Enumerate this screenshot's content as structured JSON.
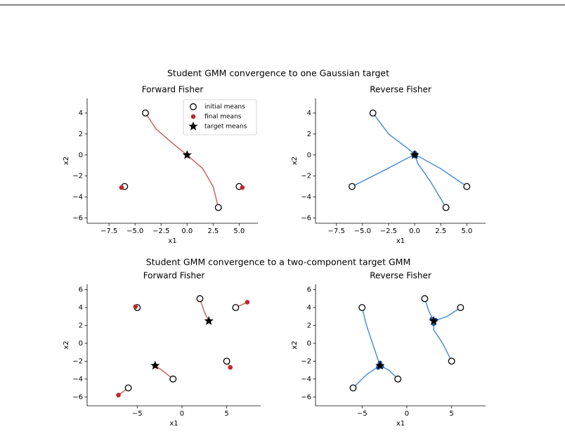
{
  "figure_titles": [
    "Student GMM convergence to one Gaussian target",
    "Student GMM convergence to a two-component target GMM"
  ],
  "chart_data": [
    {
      "type": "scatter",
      "title": "Forward Fisher",
      "xlabel": "x1",
      "ylabel": "x2",
      "xlim": [
        -9.6,
        6.8
      ],
      "ylim": [
        -6.5,
        5.4
      ],
      "xticks": [
        {
          "value": -7.5,
          "label": "−7.5"
        },
        {
          "value": -5,
          "label": "−5.0"
        },
        {
          "value": -2.5,
          "label": "−2.5"
        },
        {
          "value": 0,
          "label": "0.0"
        },
        2.5,
        {
          "value": 5,
          "label": "5.0"
        }
      ],
      "yticks": [
        {
          "value": -6,
          "label": "−6"
        },
        {
          "value": -4,
          "label": "−4"
        },
        {
          "value": -2,
          "label": "−2"
        },
        0,
        2,
        4
      ],
      "legend": "upper right",
      "path_color": "#d0605e",
      "paths": [
        {
          "x": [
            -4,
            -3,
            -1.5,
            0
          ],
          "y": [
            4,
            2.5,
            1.2,
            0
          ]
        },
        {
          "x": [
            3,
            2.5,
            1.5,
            0
          ],
          "y": [
            -5,
            -3,
            -1.3,
            0
          ]
        },
        {
          "x": [
            -6,
            -6.3
          ],
          "y": [
            -3,
            -3.1
          ]
        },
        {
          "x": [
            5,
            5.3
          ],
          "y": [
            -3,
            -3.1
          ]
        }
      ],
      "series": [
        {
          "name": "initial means",
          "marker": "open-circle",
          "color": "#000000",
          "x": [
            -4,
            3,
            -6,
            5
          ],
          "y": [
            4,
            -5,
            -3,
            -3
          ]
        },
        {
          "name": "final means",
          "marker": "dot",
          "color": "#c0282d",
          "x": [
            0,
            0,
            -6.3,
            5.3
          ],
          "y": [
            0,
            0,
            -3.1,
            -3.1
          ]
        },
        {
          "name": "target means",
          "marker": "star",
          "color": "#000000",
          "x": [
            0
          ],
          "y": [
            0
          ]
        }
      ]
    },
    {
      "type": "scatter",
      "title": "Reverse Fisher",
      "xlabel": "x1",
      "ylabel": "x2",
      "xlim": [
        -9.5,
        6.8
      ],
      "ylim": [
        -6.5,
        5.4
      ],
      "xticks": [
        {
          "value": -7.5,
          "label": "−7.5"
        },
        {
          "value": -5,
          "label": "−5.0"
        },
        {
          "value": -2.5,
          "label": "−2.5"
        },
        {
          "value": 0,
          "label": "0.0"
        },
        2.5,
        {
          "value": 5,
          "label": "5.0"
        }
      ],
      "yticks": [
        {
          "value": -6,
          "label": "−6"
        },
        {
          "value": -4,
          "label": "−4"
        },
        {
          "value": -2,
          "label": "−2"
        },
        0,
        2,
        4
      ],
      "path_color": "#4a90d9",
      "paths": [
        {
          "x": [
            -4,
            -2.5,
            -0.5,
            0
          ],
          "y": [
            4,
            2,
            0.5,
            0
          ]
        },
        {
          "x": [
            -6,
            -3,
            -0.5,
            0
          ],
          "y": [
            -3,
            -1.5,
            -0.2,
            0
          ]
        },
        {
          "x": [
            5,
            2.5,
            0.5,
            0
          ],
          "y": [
            -3,
            -1.3,
            -0.2,
            0
          ]
        },
        {
          "x": [
            3,
            1.5,
            0.3,
            0
          ],
          "y": [
            -5,
            -2.5,
            -0.8,
            0
          ]
        }
      ],
      "series": [
        {
          "marker": "open-circle",
          "color": "#000000",
          "x": [
            -4,
            -6,
            5,
            3
          ],
          "y": [
            4,
            -3,
            -3,
            -5
          ]
        },
        {
          "marker": "dot",
          "color": "#1f5fa8",
          "x": [
            0,
            -0.1,
            0.1,
            0.1
          ],
          "y": [
            0.2,
            0,
            -0.1,
            0.1
          ]
        },
        {
          "marker": "star",
          "color": "#000000",
          "x": [
            0
          ],
          "y": [
            0
          ]
        }
      ]
    },
    {
      "type": "scatter",
      "title": "Forward Fisher",
      "xlabel": "x1",
      "ylabel": "x2",
      "xlim": [
        -10.6,
        8.8
      ],
      "ylim": [
        -7,
        6.6
      ],
      "xticks": [
        {
          "value": -5,
          "label": "−5"
        },
        0,
        5
      ],
      "yticks": [
        {
          "value": -6,
          "label": "−6"
        },
        {
          "value": -4,
          "label": "−4"
        },
        {
          "value": -2,
          "label": "−2"
        },
        0,
        2,
        4,
        6
      ],
      "path_color": "#d0605e",
      "paths": [
        {
          "x": [
            2,
            2.5,
            3
          ],
          "y": [
            5,
            3.5,
            2.5
          ]
        },
        {
          "x": [
            -1,
            -2,
            -3
          ],
          "y": [
            -4,
            -3.2,
            -2.5
          ]
        },
        {
          "x": [
            6,
            7.3
          ],
          "y": [
            4,
            4.6
          ]
        },
        {
          "x": [
            5,
            5.4
          ],
          "y": [
            -2,
            -2.7
          ]
        },
        {
          "x": [
            -6,
            -7.1
          ],
          "y": [
            -5,
            -5.8
          ]
        },
        {
          "x": [
            -5,
            -5.2
          ],
          "y": [
            4,
            4.1
          ]
        }
      ],
      "series": [
        {
          "marker": "open-circle",
          "color": "#000000",
          "x": [
            -5,
            2,
            6,
            5,
            -1,
            -6
          ],
          "y": [
            4,
            5,
            4,
            -2,
            -4,
            -5
          ]
        },
        {
          "marker": "dot",
          "color": "#c0282d",
          "x": [
            -5.2,
            3,
            7.3,
            5.4,
            -3,
            -7.1
          ],
          "y": [
            4.1,
            2.5,
            4.6,
            -2.7,
            -2.5,
            -5.8
          ]
        },
        {
          "marker": "star",
          "color": "#000000",
          "x": [
            3,
            -3
          ],
          "y": [
            2.5,
            -2.5
          ]
        }
      ]
    },
    {
      "type": "scatter",
      "title": "Reverse Fisher",
      "xlabel": "x1",
      "ylabel": "x2",
      "xlim": [
        -10.2,
        8.8
      ],
      "ylim": [
        -7,
        6.6
      ],
      "xticks": [
        {
          "value": -5,
          "label": "−5"
        },
        0,
        5
      ],
      "yticks": [
        {
          "value": -6,
          "label": "−6"
        },
        {
          "value": -4,
          "label": "−4"
        },
        {
          "value": -2,
          "label": "−2"
        },
        0,
        2,
        4,
        6
      ],
      "path_color": "#4a90d9",
      "paths": [
        {
          "x": [
            -5,
            -4.5,
            -3.5,
            -3
          ],
          "y": [
            4,
            2,
            -1,
            -2.5
          ]
        },
        {
          "x": [
            -6,
            -4.5,
            -3
          ],
          "y": [
            -5,
            -3.5,
            -2.5
          ]
        },
        {
          "x": [
            -1,
            -2,
            -3
          ],
          "y": [
            -4,
            -3,
            -2.5
          ]
        },
        {
          "x": [
            2,
            2.5,
            3
          ],
          "y": [
            5,
            3.5,
            2.5
          ]
        },
        {
          "x": [
            6,
            4.5,
            3
          ],
          "y": [
            4,
            3,
            2.5
          ]
        },
        {
          "x": [
            5,
            4,
            3,
            3
          ],
          "y": [
            -2,
            0,
            1.5,
            2.5
          ]
        }
      ],
      "series": [
        {
          "marker": "open-circle",
          "color": "#000000",
          "x": [
            -5,
            2,
            6,
            5,
            -1,
            -6
          ],
          "y": [
            4,
            5,
            4,
            -2,
            -4,
            -5
          ]
        },
        {
          "marker": "dot",
          "color": "#1f5fa8",
          "x": [
            2.8,
            3.2,
            3,
            -3,
            -3.2,
            -2.8
          ],
          "y": [
            2.7,
            2.6,
            2.2,
            -2.2,
            -2.7,
            -2.6
          ]
        },
        {
          "marker": "star",
          "color": "#000000",
          "x": [
            3,
            -3
          ],
          "y": [
            2.5,
            -2.5
          ]
        }
      ]
    }
  ]
}
